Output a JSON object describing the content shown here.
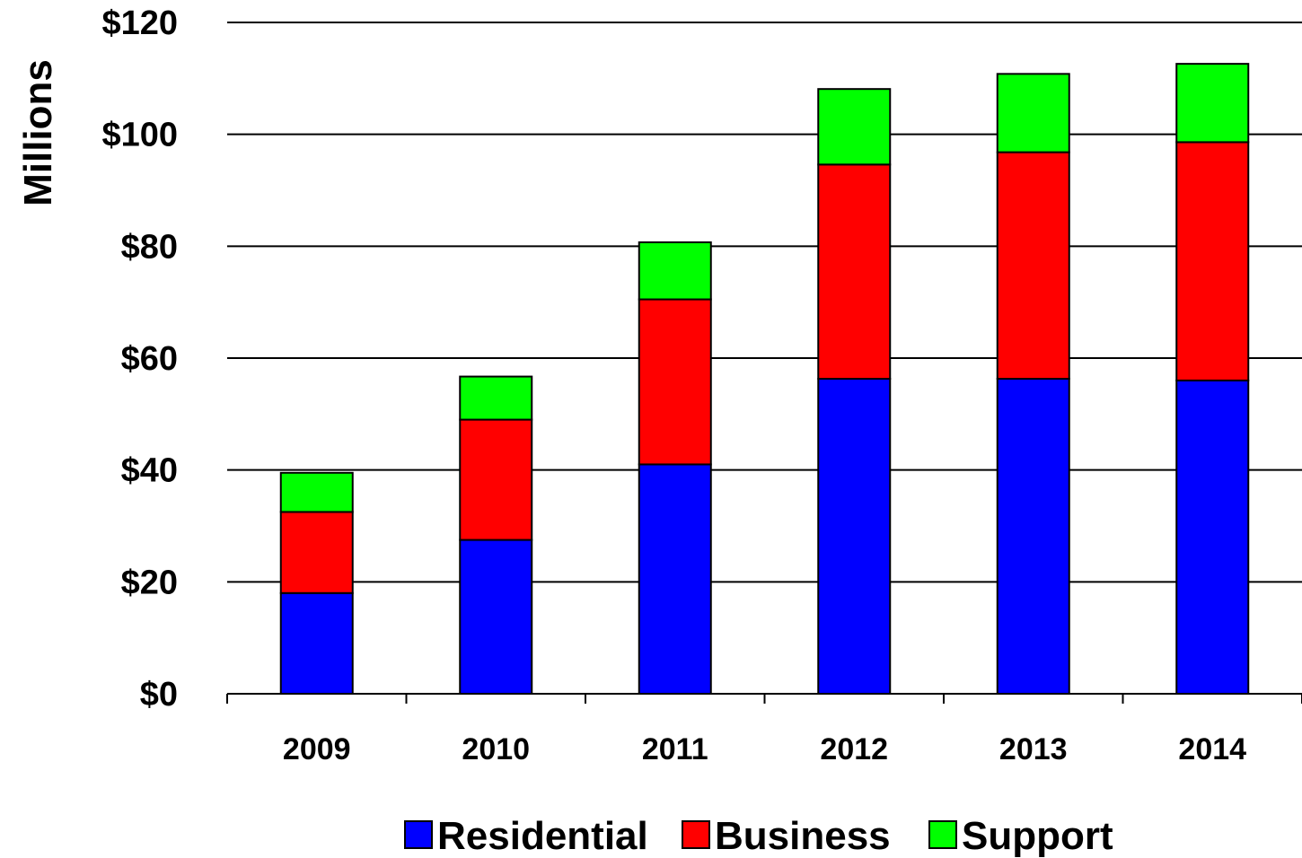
{
  "chart_data": {
    "type": "bar",
    "stacked": true,
    "categories": [
      "2009",
      "2010",
      "2011",
      "2012",
      "2013",
      "2014"
    ],
    "series": [
      {
        "name": "Residential",
        "color": "#0000ff",
        "values": [
          18,
          27.5,
          41,
          56.3,
          56.3,
          56
        ]
      },
      {
        "name": "Business",
        "color": "#ff0000",
        "values": [
          14.5,
          21.5,
          29.5,
          38.3,
          40.5,
          42.6
        ]
      },
      {
        "name": "Support",
        "color": "#00ff00",
        "values": [
          7,
          7.7,
          10.2,
          13.5,
          14,
          14
        ]
      }
    ],
    "ylabel": "Millions",
    "ylim": [
      0,
      120
    ],
    "yticks": [
      0,
      20,
      40,
      60,
      80,
      100,
      120
    ],
    "ytick_labels": [
      "$0",
      "$20",
      "$40",
      "$60",
      "$80",
      "$100",
      "$120"
    ],
    "grid": true,
    "legend": "bottom"
  }
}
